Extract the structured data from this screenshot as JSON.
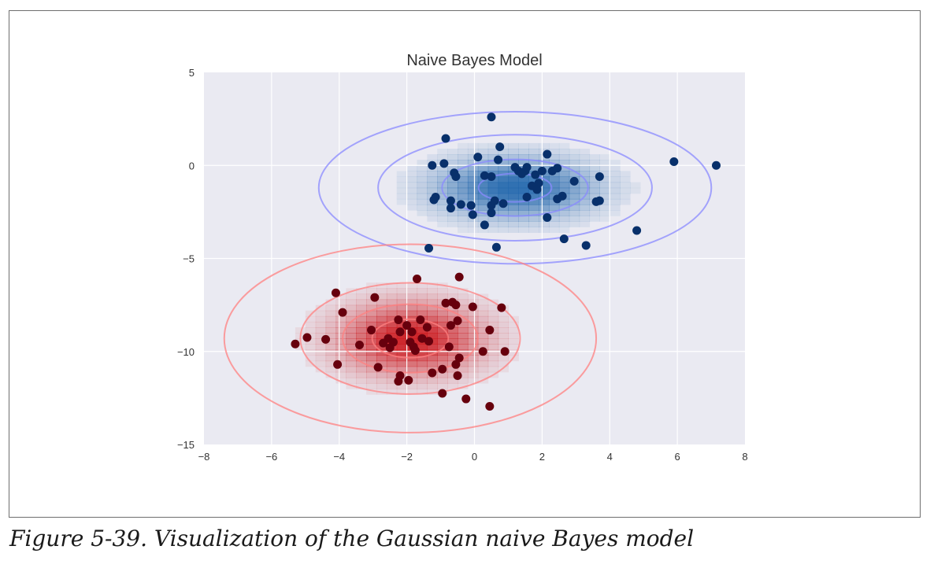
{
  "caption": "Figure 5-39. Visualization of the Gaussian naive Bayes model",
  "chart_data": {
    "type": "scatter",
    "title": "Naive Bayes Model",
    "xlabel": "",
    "ylabel": "",
    "xlim": [
      -8,
      8
    ],
    "ylim": [
      -15,
      5
    ],
    "xticks": [
      -8,
      -6,
      -4,
      -2,
      0,
      2,
      4,
      6,
      8
    ],
    "yticks": [
      5,
      0,
      -5,
      -10,
      -15
    ],
    "grid": true,
    "background": "#eaeaf2",
    "series": [
      {
        "color": "#08306b",
        "gaussian": {
          "mean": [
            1.2,
            -1.2
          ],
          "sx": 1.35,
          "sy": 0.95
        },
        "contour_levels": [
          0.8,
          1.6,
          3.0,
          4.3
        ],
        "contour_color": "#8a8aff",
        "points": [
          [
            0.5,
            2.6
          ],
          [
            -0.85,
            1.45
          ],
          [
            0.75,
            1.0
          ],
          [
            0.1,
            0.45
          ],
          [
            0.7,
            0.3
          ],
          [
            -1.25,
            0.0
          ],
          [
            -0.9,
            0.1
          ],
          [
            -0.6,
            -0.4
          ],
          [
            -0.55,
            -0.6
          ],
          [
            0.3,
            -0.55
          ],
          [
            0.5,
            -0.6
          ],
          [
            1.2,
            -0.1
          ],
          [
            1.3,
            -0.3
          ],
          [
            1.5,
            -0.3
          ],
          [
            1.55,
            -0.1
          ],
          [
            1.4,
            -0.45
          ],
          [
            2.0,
            -0.3
          ],
          [
            2.15,
            0.6
          ],
          [
            2.3,
            -0.3
          ],
          [
            2.45,
            -0.15
          ],
          [
            1.8,
            -0.5
          ],
          [
            1.9,
            -0.95
          ],
          [
            1.7,
            -1.1
          ],
          [
            1.85,
            -1.3
          ],
          [
            2.95,
            -0.85
          ],
          [
            3.7,
            -0.6
          ],
          [
            2.6,
            -1.65
          ],
          [
            2.45,
            -1.8
          ],
          [
            3.6,
            -1.95
          ],
          [
            3.7,
            -1.9
          ],
          [
            -1.15,
            -1.7
          ],
          [
            -1.2,
            -1.85
          ],
          [
            -0.7,
            -1.9
          ],
          [
            -0.7,
            -2.3
          ],
          [
            -0.4,
            -2.1
          ],
          [
            -0.1,
            -2.15
          ],
          [
            0.5,
            -2.15
          ],
          [
            0.6,
            -1.9
          ],
          [
            0.85,
            -2.05
          ],
          [
            1.55,
            -1.7
          ],
          [
            0.5,
            -2.55
          ],
          [
            -0.05,
            -2.65
          ],
          [
            0.3,
            -3.2
          ],
          [
            2.15,
            -2.8
          ],
          [
            2.65,
            -3.95
          ],
          [
            4.8,
            -3.5
          ],
          [
            3.3,
            -4.3
          ],
          [
            0.65,
            -4.4
          ],
          [
            -1.35,
            -4.45
          ],
          [
            5.9,
            0.2
          ],
          [
            7.15,
            0.0
          ]
        ]
      },
      {
        "color": "#67000d",
        "gaussian": {
          "mean": [
            -1.9,
            -9.3
          ],
          "sx": 1.25,
          "sy": 1.15
        },
        "contour_levels": [
          0.9,
          1.6,
          2.6,
          4.4
        ],
        "contour_color": "#ff8080",
        "points": [
          [
            -1.7,
            -6.1
          ],
          [
            -0.45,
            -6.0
          ],
          [
            -4.1,
            -6.85
          ],
          [
            -2.95,
            -7.1
          ],
          [
            -0.65,
            -7.35
          ],
          [
            -0.85,
            -7.4
          ],
          [
            -0.55,
            -7.5
          ],
          [
            -3.9,
            -7.9
          ],
          [
            -0.05,
            -7.6
          ],
          [
            0.8,
            -7.65
          ],
          [
            -1.6,
            -8.3
          ],
          [
            -0.5,
            -8.35
          ],
          [
            -0.7,
            -8.6
          ],
          [
            -2.0,
            -8.6
          ],
          [
            -1.4,
            -8.7
          ],
          [
            -2.25,
            -8.3
          ],
          [
            -3.05,
            -8.85
          ],
          [
            -2.2,
            -8.95
          ],
          [
            -1.85,
            -8.95
          ],
          [
            -1.55,
            -9.3
          ],
          [
            -1.35,
            -9.45
          ],
          [
            0.45,
            -8.85
          ],
          [
            -1.9,
            -9.5
          ],
          [
            -2.55,
            -9.3
          ],
          [
            -2.7,
            -9.55
          ],
          [
            -2.4,
            -9.5
          ],
          [
            -1.8,
            -9.75
          ],
          [
            -1.75,
            -9.95
          ],
          [
            -2.5,
            -9.8
          ],
          [
            -3.4,
            -9.65
          ],
          [
            -4.4,
            -9.35
          ],
          [
            -4.95,
            -9.25
          ],
          [
            -5.3,
            -9.6
          ],
          [
            -0.75,
            -9.75
          ],
          [
            0.25,
            -10.0
          ],
          [
            0.9,
            -10.0
          ],
          [
            -0.45,
            -10.35
          ],
          [
            -0.55,
            -10.7
          ],
          [
            -4.05,
            -10.7
          ],
          [
            -2.85,
            -10.85
          ],
          [
            -0.95,
            -10.95
          ],
          [
            -1.25,
            -11.15
          ],
          [
            -0.5,
            -11.3
          ],
          [
            -2.2,
            -11.3
          ],
          [
            -2.25,
            -11.6
          ],
          [
            -1.95,
            -11.55
          ],
          [
            -0.95,
            -12.25
          ],
          [
            -0.25,
            -12.55
          ],
          [
            0.45,
            -12.95
          ]
        ]
      }
    ]
  }
}
